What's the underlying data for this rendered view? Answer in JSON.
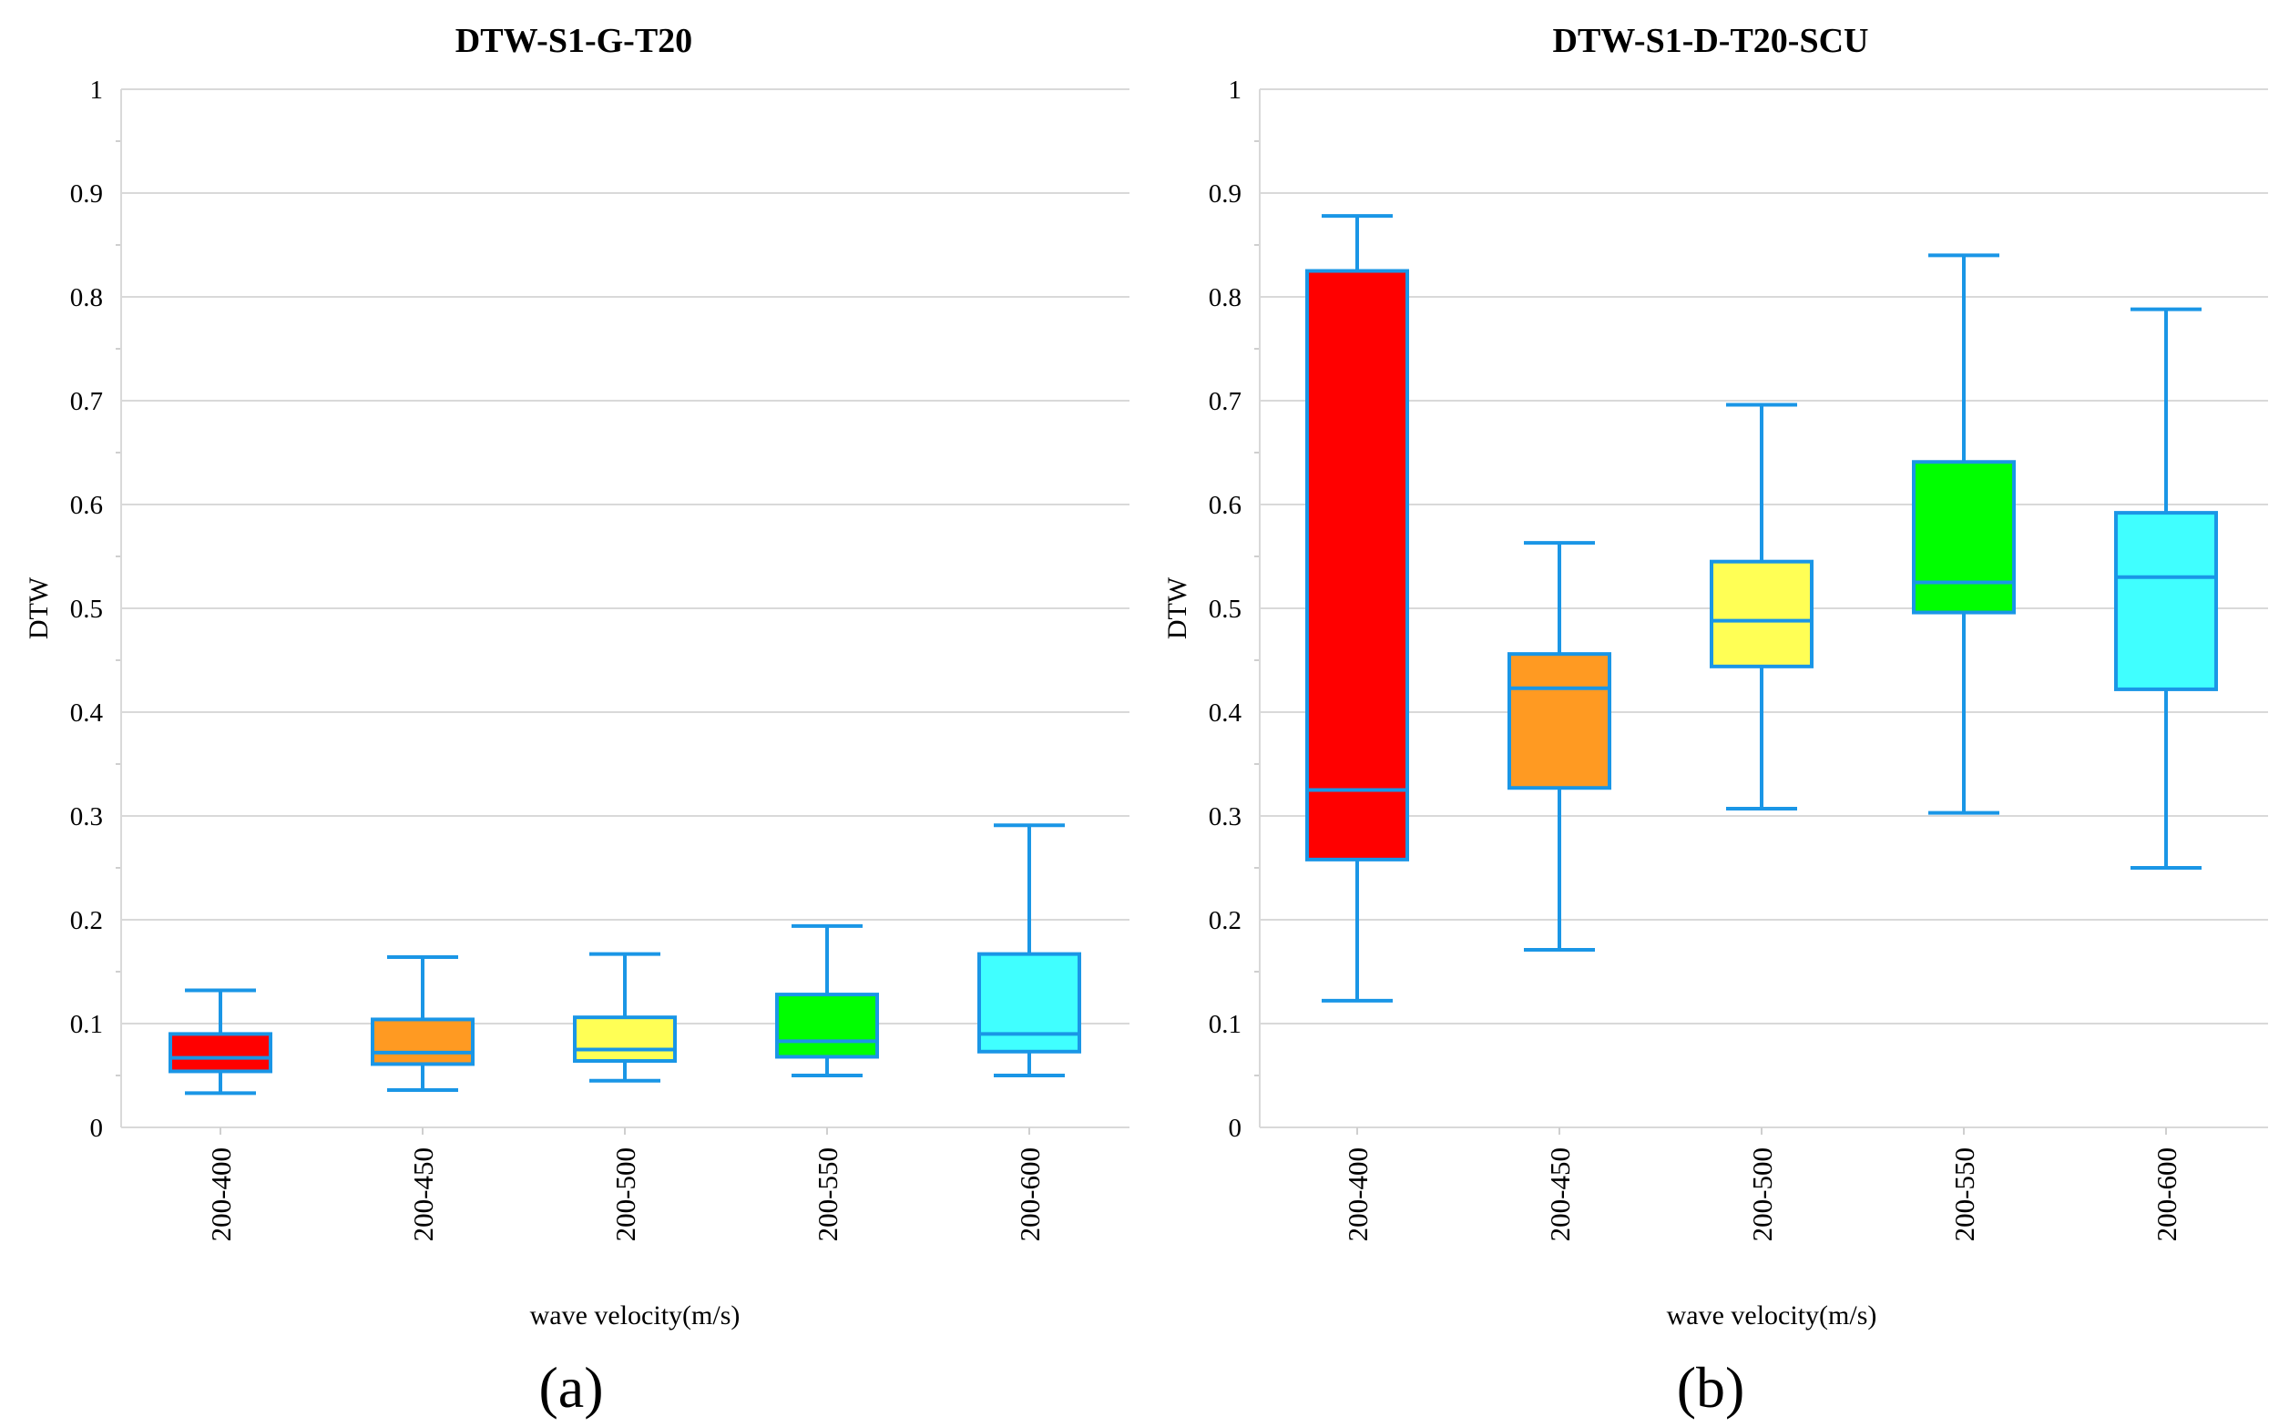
{
  "chart_data": [
    {
      "type": "box",
      "title": "DTW-S1-G-T20",
      "xlabel": "wave velocity(m/s)",
      "ylabel": "DTW",
      "panel_label": "(a)",
      "ylim": [
        0,
        1
      ],
      "yticks": [
        "0",
        "0.1",
        "0.2",
        "0.3",
        "0.4",
        "0.5",
        "0.6",
        "0.7",
        "0.8",
        "0.9",
        "1"
      ],
      "categories": [
        "200-400",
        "200-450",
        "200-500",
        "200-550",
        "200-600"
      ],
      "boxes": [
        {
          "min": 0.033,
          "q1": 0.054,
          "median": 0.067,
          "q3": 0.09,
          "max": 0.132,
          "color": "#ff0000"
        },
        {
          "min": 0.036,
          "q1": 0.061,
          "median": 0.072,
          "q3": 0.104,
          "max": 0.164,
          "color": "#ff9a22"
        },
        {
          "min": 0.045,
          "q1": 0.064,
          "median": 0.075,
          "q3": 0.106,
          "max": 0.167,
          "color": "#ffff55"
        },
        {
          "min": 0.05,
          "q1": 0.068,
          "median": 0.083,
          "q3": 0.128,
          "max": 0.194,
          "color": "#00ff00"
        },
        {
          "min": 0.05,
          "q1": 0.073,
          "median": 0.09,
          "q3": 0.167,
          "max": 0.291,
          "color": "#40ffff"
        }
      ]
    },
    {
      "type": "box",
      "title": "DTW-S1-D-T20-SCU",
      "xlabel": "wave velocity(m/s)",
      "ylabel": "DTW",
      "panel_label": "(b)",
      "ylim": [
        0,
        1
      ],
      "yticks": [
        "0",
        "0.1",
        "0.2",
        "0.3",
        "0.4",
        "0.5",
        "0.6",
        "0.7",
        "0.8",
        "0.9",
        "1"
      ],
      "categories": [
        "200-400",
        "200-450",
        "200-500",
        "200-550",
        "200-600"
      ],
      "boxes": [
        {
          "min": 0.122,
          "q1": 0.258,
          "median": 0.325,
          "q3": 0.825,
          "max": 0.878,
          "color": "#ff0000"
        },
        {
          "min": 0.171,
          "q1": 0.327,
          "median": 0.423,
          "q3": 0.456,
          "max": 0.563,
          "color": "#ff9a22"
        },
        {
          "min": 0.307,
          "q1": 0.444,
          "median": 0.488,
          "q3": 0.545,
          "max": 0.696,
          "color": "#ffff55"
        },
        {
          "min": 0.303,
          "q1": 0.496,
          "median": 0.525,
          "q3": 0.641,
          "max": 0.84,
          "color": "#00ff00"
        },
        {
          "min": 0.25,
          "q1": 0.422,
          "median": 0.53,
          "q3": 0.592,
          "max": 0.788,
          "color": "#40ffff"
        }
      ]
    }
  ]
}
